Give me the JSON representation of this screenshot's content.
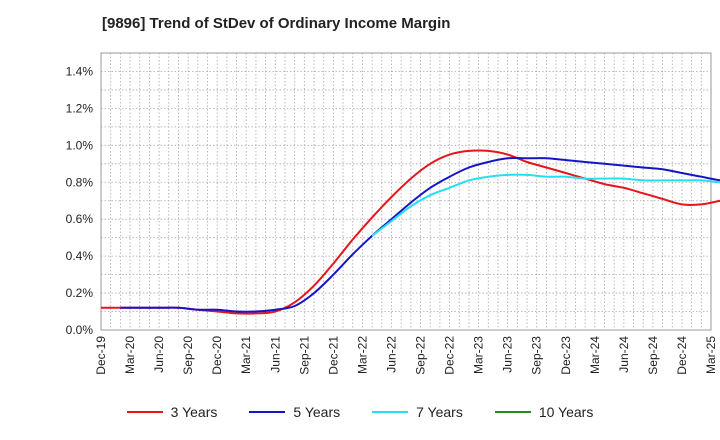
{
  "chart_data": {
    "type": "line",
    "title": "[9896]  Trend of StDev of Ordinary Income Margin",
    "xlabel": "",
    "ylabel": "",
    "x_tick_labels": [
      "Dec-19",
      "Mar-20",
      "Jun-20",
      "Sep-20",
      "Dec-20",
      "Mar-21",
      "Jun-21",
      "Sep-21",
      "Dec-21",
      "Mar-22",
      "Jun-22",
      "Sep-22",
      "Dec-22",
      "Mar-23",
      "Jun-23",
      "Sep-23",
      "Dec-23",
      "Mar-24",
      "Jun-24",
      "Sep-24",
      "Dec-24",
      "Mar-25"
    ],
    "y_tick_labels": [
      "0.0%",
      "0.2%",
      "0.4%",
      "0.6%",
      "0.8%",
      "1.0%",
      "1.2%",
      "1.4%"
    ],
    "ylim": [
      0,
      1.5
    ],
    "grid": true,
    "legend_position": "bottom",
    "series": [
      {
        "name": "3 Years",
        "color": "#e8141b",
        "values": [
          0.12,
          0.12,
          0.12,
          0.12,
          0.12,
          0.11,
          0.1,
          0.09,
          0.09,
          0.1,
          0.15,
          0.24,
          0.36,
          0.49,
          0.61,
          0.72,
          0.82,
          0.9,
          0.95,
          0.97,
          0.97,
          0.95,
          0.91,
          0.88,
          0.85,
          0.82,
          0.79,
          0.77,
          0.74,
          0.71,
          0.68,
          0.68,
          0.7,
          0.71,
          0.71
        ]
      },
      {
        "name": "5 Years",
        "color": "#1515c8",
        "values": [
          null,
          0.12,
          0.12,
          0.12,
          0.12,
          0.11,
          0.11,
          0.1,
          0.1,
          0.11,
          0.13,
          0.2,
          0.3,
          0.41,
          0.51,
          0.6,
          0.69,
          0.77,
          0.83,
          0.88,
          0.91,
          0.93,
          0.93,
          0.93,
          0.92,
          0.91,
          0.9,
          0.89,
          0.88,
          0.87,
          0.85,
          0.83,
          0.81,
          0.8,
          0.78
        ]
      },
      {
        "name": "7 Years",
        "color": "#22e0f0",
        "values": [
          null,
          null,
          null,
          null,
          null,
          null,
          null,
          null,
          null,
          null,
          null,
          null,
          null,
          null,
          0.51,
          0.59,
          0.67,
          0.73,
          0.77,
          0.81,
          0.83,
          0.84,
          0.84,
          0.83,
          0.83,
          0.82,
          0.82,
          0.82,
          0.81,
          0.81,
          0.81,
          0.81,
          0.8,
          0.8,
          0.79
        ]
      },
      {
        "name": "10 Years",
        "color": "#1f8f1f",
        "values": []
      }
    ]
  }
}
